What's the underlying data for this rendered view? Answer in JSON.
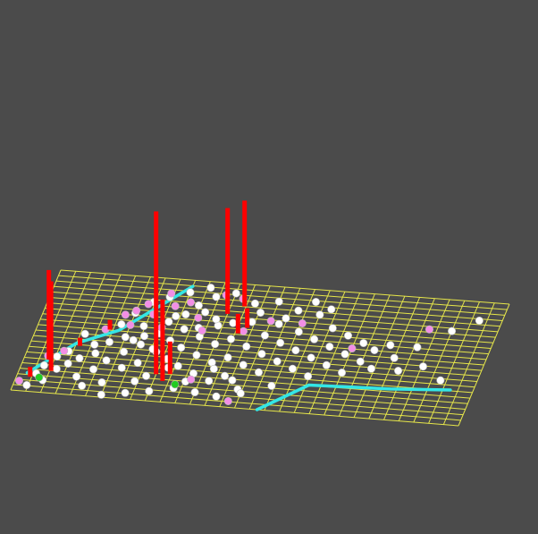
{
  "scene": {
    "background_color": "#4b4b4b",
    "grid": {
      "line_color": "#e6e64a",
      "cols": 30,
      "rows": 22
    },
    "colors": {
      "spike": "#ff0000",
      "path": "#33e6e6",
      "marker_white": "#ffffff",
      "marker_pink": "#f28ee6",
      "marker_green": "#22cc22"
    },
    "spikes": [
      {
        "at": [
          0.055,
          0.27
        ],
        "height": 0.55
      },
      {
        "at": [
          0.07,
          0.18
        ],
        "height": 0.55
      },
      {
        "at": [
          0.03,
          0.12
        ],
        "height": 0.06
      },
      {
        "at": [
          0.11,
          0.4
        ],
        "height": 0.05
      },
      {
        "at": [
          0.16,
          0.55
        ],
        "height": 0.06
      },
      {
        "at": [
          0.3,
          0.22
        ],
        "height": 1.0
      },
      {
        "at": [
          0.32,
          0.17
        ],
        "height": 0.5
      },
      {
        "at": [
          0.33,
          0.23
        ],
        "height": 0.2
      },
      {
        "at": [
          0.4,
          0.75
        ],
        "height": 0.65
      },
      {
        "at": [
          0.43,
          0.82
        ],
        "height": 0.65
      },
      {
        "at": [
          0.44,
          0.6
        ],
        "height": 0.12
      },
      {
        "at": [
          0.455,
          0.65
        ],
        "height": 0.12
      }
    ],
    "paths": [
      {
        "points": [
          [
            0.02,
            0.15
          ],
          [
            0.1,
            0.42
          ],
          [
            0.18,
            0.55
          ],
          [
            0.24,
            0.75
          ],
          [
            0.3,
            0.95
          ]
        ]
      },
      {
        "points": [
          [
            0.55,
            0.0
          ],
          [
            0.64,
            0.23
          ],
          [
            0.82,
            0.25
          ],
          [
            0.95,
            0.28
          ]
        ]
      }
    ],
    "markers_white": [
      [
        0.03,
        0.05
      ],
      [
        0.04,
        0.15
      ],
      [
        0.06,
        0.1
      ],
      [
        0.08,
        0.2
      ],
      [
        0.1,
        0.25
      ],
      [
        0.12,
        0.3
      ],
      [
        0.13,
        0.15
      ],
      [
        0.15,
        0.35
      ],
      [
        0.16,
        0.22
      ],
      [
        0.17,
        0.45
      ],
      [
        0.18,
        0.3
      ],
      [
        0.19,
        0.12
      ],
      [
        0.2,
        0.5
      ],
      [
        0.21,
        0.38
      ],
      [
        0.22,
        0.25
      ],
      [
        0.23,
        0.6
      ],
      [
        0.24,
        0.45
      ],
      [
        0.25,
        0.3
      ],
      [
        0.26,
        0.15
      ],
      [
        0.27,
        0.55
      ],
      [
        0.28,
        0.4
      ],
      [
        0.29,
        0.7
      ],
      [
        0.3,
        0.5
      ],
      [
        0.31,
        0.35
      ],
      [
        0.32,
        0.6
      ],
      [
        0.33,
        0.45
      ],
      [
        0.34,
        0.3
      ],
      [
        0.35,
        0.75
      ],
      [
        0.36,
        0.55
      ],
      [
        0.37,
        0.4
      ],
      [
        0.38,
        0.25
      ],
      [
        0.39,
        0.65
      ],
      [
        0.4,
        0.5
      ],
      [
        0.41,
        0.35
      ],
      [
        0.42,
        0.2
      ],
      [
        0.43,
        0.55
      ],
      [
        0.44,
        0.4
      ],
      [
        0.45,
        0.25
      ],
      [
        0.46,
        0.7
      ],
      [
        0.47,
        0.5
      ],
      [
        0.48,
        0.35
      ],
      [
        0.49,
        0.15
      ],
      [
        0.5,
        0.6
      ],
      [
        0.51,
        0.45
      ],
      [
        0.52,
        0.3
      ],
      [
        0.53,
        0.75
      ],
      [
        0.54,
        0.55
      ],
      [
        0.55,
        0.4
      ],
      [
        0.56,
        0.2
      ],
      [
        0.57,
        0.65
      ],
      [
        0.58,
        0.5
      ],
      [
        0.59,
        0.35
      ],
      [
        0.6,
        0.8
      ],
      [
        0.61,
        0.6
      ],
      [
        0.62,
        0.45
      ],
      [
        0.63,
        0.3
      ],
      [
        0.64,
        0.7
      ],
      [
        0.65,
        0.55
      ],
      [
        0.66,
        0.4
      ],
      [
        0.68,
        0.65
      ],
      [
        0.69,
        0.5
      ],
      [
        0.7,
        0.35
      ],
      [
        0.72,
        0.6
      ],
      [
        0.73,
        0.45
      ],
      [
        0.75,
        0.55
      ],
      [
        0.76,
        0.4
      ],
      [
        0.78,
        0.6
      ],
      [
        0.8,
        0.5
      ],
      [
        0.82,
        0.4
      ],
      [
        0.84,
        0.6
      ],
      [
        0.87,
        0.45
      ],
      [
        0.9,
        0.75
      ],
      [
        0.92,
        0.35
      ],
      [
        0.95,
        0.85
      ],
      [
        0.26,
        0.85
      ],
      [
        0.3,
        0.9
      ],
      [
        0.33,
        0.8
      ],
      [
        0.36,
        0.88
      ],
      [
        0.4,
        0.92
      ],
      [
        0.45,
        0.85
      ],
      [
        0.5,
        0.88
      ],
      [
        0.55,
        0.82
      ],
      [
        0.58,
        0.9
      ],
      [
        0.62,
        0.85
      ],
      [
        0.2,
        0.7
      ],
      [
        0.23,
        0.8
      ],
      [
        0.28,
        0.65
      ],
      [
        0.31,
        0.72
      ],
      [
        0.35,
        0.62
      ],
      [
        0.38,
        0.7
      ],
      [
        0.42,
        0.68
      ],
      [
        0.47,
        0.78
      ],
      [
        0.52,
        0.7
      ],
      [
        0.18,
        0.6
      ],
      [
        0.14,
        0.42
      ],
      [
        0.11,
        0.5
      ],
      [
        0.09,
        0.35
      ],
      [
        0.07,
        0.3
      ],
      [
        0.05,
        0.22
      ],
      [
        0.25,
        0.05
      ],
      [
        0.3,
        0.08
      ],
      [
        0.35,
        0.12
      ],
      [
        0.4,
        0.1
      ],
      [
        0.45,
        0.08
      ],
      [
        0.2,
        0.02
      ],
      [
        0.15,
        0.08
      ],
      [
        0.5,
        0.12
      ],
      [
        0.28,
        0.2
      ],
      [
        0.32,
        0.28
      ],
      [
        0.37,
        0.18
      ],
      [
        0.42,
        0.3
      ],
      [
        0.47,
        0.22
      ],
      [
        0.34,
        0.95
      ],
      [
        0.24,
        0.52
      ],
      [
        0.27,
        0.42
      ],
      [
        0.22,
        0.48
      ]
    ],
    "markers_pink": [
      [
        0.01,
        0.08
      ],
      [
        0.05,
        0.3
      ],
      [
        0.08,
        0.35
      ],
      [
        0.15,
        0.55
      ],
      [
        0.18,
        0.68
      ],
      [
        0.2,
        0.72
      ],
      [
        0.22,
        0.78
      ],
      [
        0.24,
        0.7
      ],
      [
        0.26,
        0.88
      ],
      [
        0.28,
        0.78
      ],
      [
        0.31,
        0.82
      ],
      [
        0.34,
        0.7
      ],
      [
        0.38,
        0.9
      ],
      [
        0.42,
        0.88
      ],
      [
        0.45,
        0.62
      ],
      [
        0.5,
        0.72
      ],
      [
        0.57,
        0.72
      ],
      [
        0.7,
        0.55
      ],
      [
        0.85,
        0.75
      ],
      [
        0.27,
        0.6
      ],
      [
        0.38,
        0.2
      ],
      [
        0.48,
        0.05
      ],
      [
        0.2,
        0.6
      ],
      [
        0.36,
        0.6
      ]
    ],
    "markers_green": [
      [
        0.35,
        0.15
      ],
      [
        0.05,
        0.12
      ]
    ]
  }
}
